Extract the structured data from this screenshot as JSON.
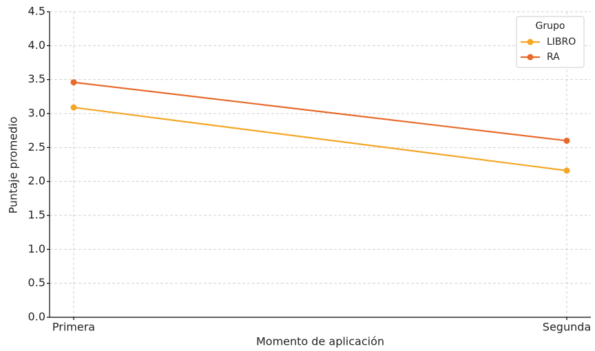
{
  "chart_data": {
    "type": "line",
    "x_label": "Momento de aplicación",
    "y_label": "Puntaje promedio",
    "categories": [
      "Primera",
      "Segunda"
    ],
    "series": [
      {
        "name": "LIBRO",
        "color": "#f5a623",
        "values": [
          3.09,
          2.16
        ]
      },
      {
        "name": "RA",
        "color": "#e8692a",
        "values": [
          3.46,
          2.6
        ]
      }
    ],
    "ylim": [
      0,
      4.5
    ],
    "yticks": [
      {
        "value": 0,
        "label": "0.0"
      },
      0.5,
      {
        "value": 1,
        "label": "1.0"
      },
      1.5,
      {
        "value": 2,
        "label": "2.0"
      },
      2.5,
      {
        "value": 3,
        "label": "3.0"
      },
      3.5,
      {
        "value": 4,
        "label": "4.0"
      },
      4.5
    ],
    "grid": true,
    "legend": {
      "title": "Grupo",
      "position": "upper right"
    }
  }
}
